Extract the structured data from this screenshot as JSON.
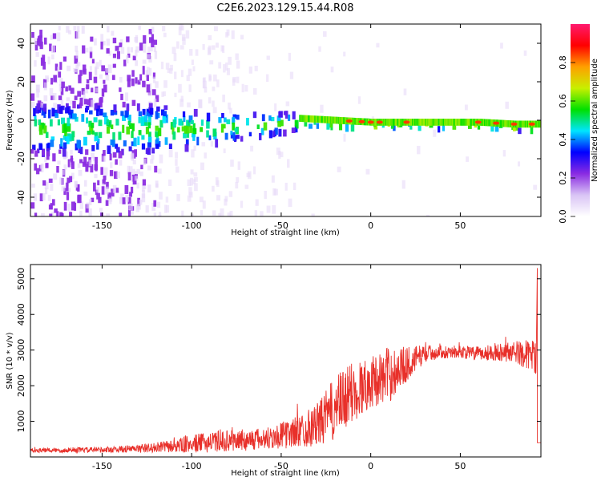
{
  "chart_data": [
    {
      "type": "heatmap",
      "title": "C2E6.2023.129.15.44.R08",
      "xlabel": "Height of straight line (km)",
      "ylabel": "Frequency (Hz)",
      "xlim": [
        -190,
        95
      ],
      "ylim": [
        -50,
        50
      ],
      "xticks": [
        -150,
        -100,
        -50,
        0,
        50
      ],
      "yticks": [
        -40,
        -20,
        0,
        20,
        40
      ],
      "colorbar": {
        "label": "Normalized spectral amplitude",
        "range": [
          0,
          1
        ],
        "ticks": [
          "0.0",
          "0.2",
          "0.4",
          "0.6",
          "0.8"
        ],
        "colors": [
          "#ffffff",
          "#d9c4f5",
          "#8a2be2",
          "#0000ff",
          "#00e5ff",
          "#00e000",
          "#c8f000",
          "#ffa000",
          "#ff0000",
          "#ff1a6e"
        ]
      },
      "band": {
        "description_points_x": [
          -120,
          -100,
          -80,
          -60,
          -40,
          -20,
          0,
          20,
          40,
          60,
          80,
          93
        ],
        "center_freq": [
          -3,
          -3,
          -2,
          -1,
          1,
          0,
          -1,
          -1,
          -1,
          -1,
          -2,
          -2
        ],
        "half_width": [
          12,
          9,
          7,
          6,
          4,
          2,
          2,
          2,
          2,
          2,
          2,
          2
        ]
      }
    },
    {
      "type": "line",
      "xlabel": "Height of straight line (km)",
      "ylabel": "SNR (10 * v/v)",
      "xlim": [
        -190,
        95
      ],
      "ylim": [
        0,
        5400
      ],
      "xticks": [
        -150,
        -100,
        -50,
        0,
        50
      ],
      "yticks": [
        1000,
        2000,
        3000,
        4000,
        5000
      ],
      "series_color": "#e8302a",
      "envelope": {
        "x": [
          -190,
          -150,
          -130,
          -110,
          -100,
          -80,
          -60,
          -45,
          -30,
          -20,
          -10,
          0,
          10,
          20,
          30,
          40,
          50,
          60,
          70,
          80,
          90,
          93
        ],
        "mean": [
          180,
          200,
          230,
          300,
          370,
          450,
          500,
          650,
          900,
          1350,
          1800,
          2100,
          2300,
          2600,
          2900,
          2950,
          2950,
          2900,
          2950,
          2950,
          2850,
          2800
        ],
        "spread": [
          60,
          80,
          110,
          180,
          260,
          300,
          320,
          400,
          600,
          900,
          900,
          700,
          800,
          500,
          250,
          180,
          180,
          200,
          250,
          300,
          450,
          500
        ]
      },
      "spike": {
        "x": 93,
        "y": 5300
      }
    }
  ]
}
